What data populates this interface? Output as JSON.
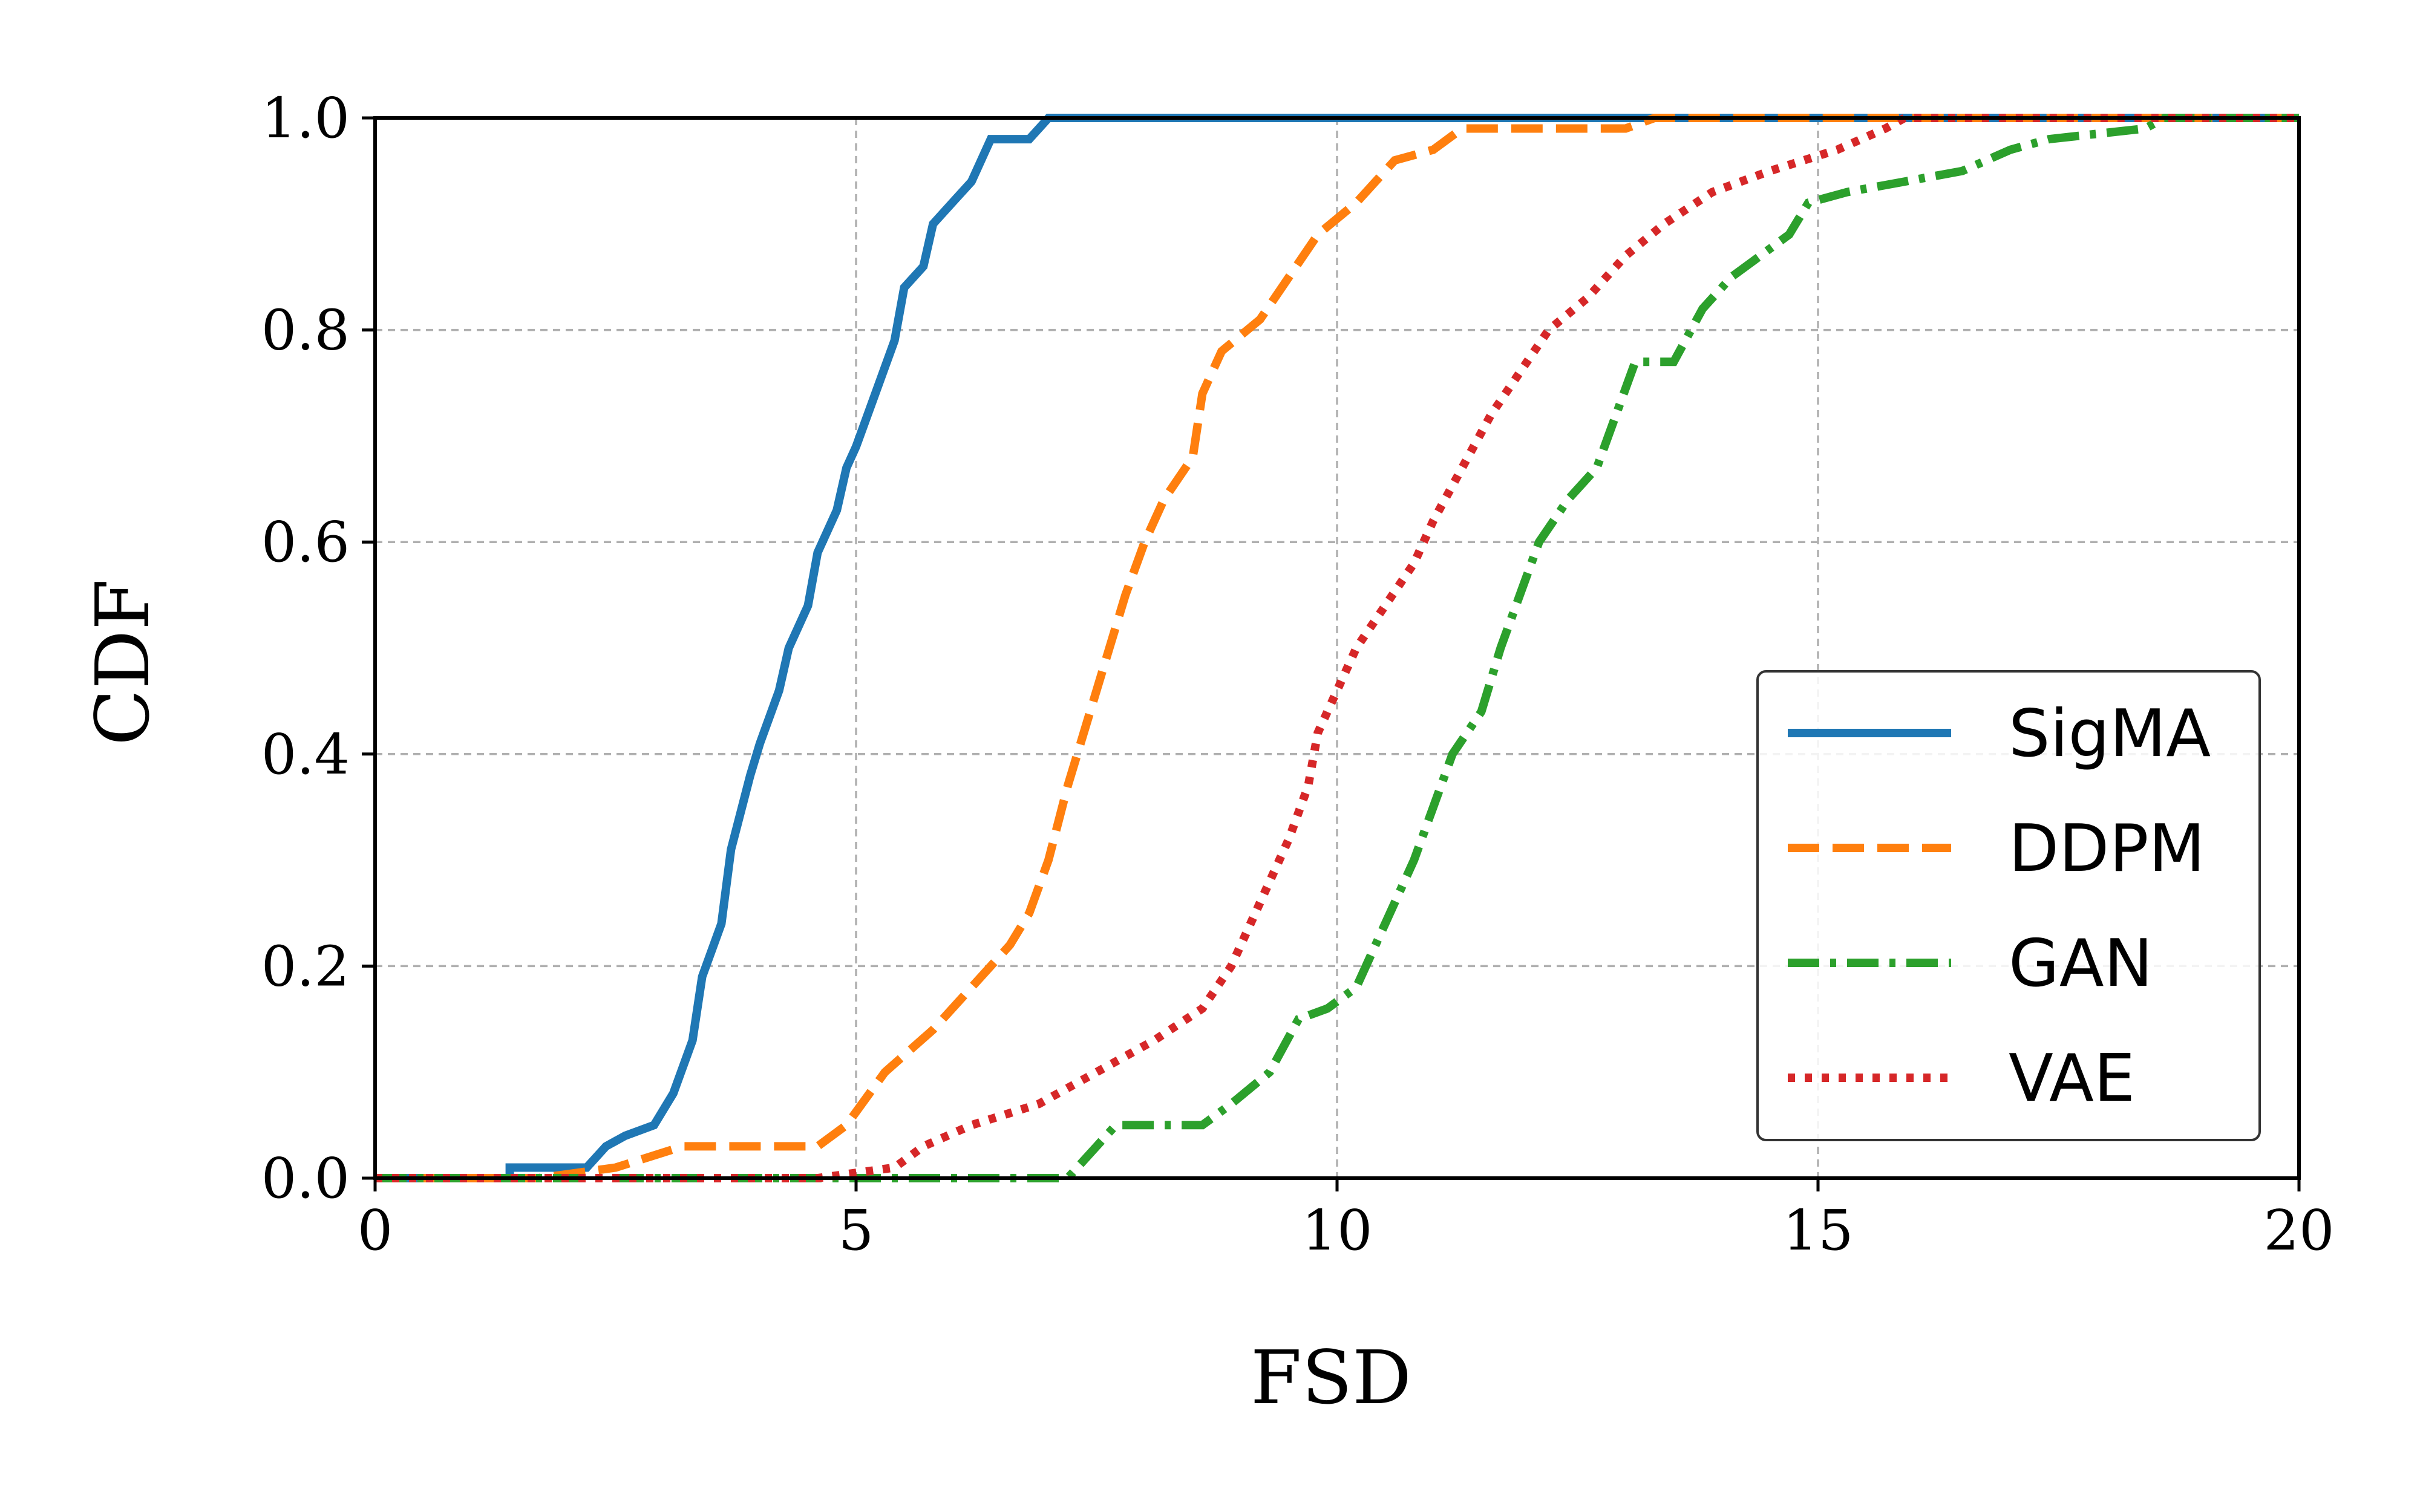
{
  "chart_data": {
    "type": "line",
    "xlabel": "FSD",
    "ylabel": "CDF",
    "xlim": [
      0,
      20
    ],
    "ylim": [
      0,
      1.0
    ],
    "x_ticks": [
      "0",
      "5",
      "10",
      "15",
      "20"
    ],
    "y_ticks": [
      "0.0",
      "0.2",
      "0.4",
      "0.6",
      "0.8",
      "1.0"
    ],
    "grid": true,
    "legend_position": "lower-right",
    "series": [
      {
        "name": "SigMA",
        "color": "#1f77b4",
        "style": "solid",
        "points": [
          [
            0,
            0
          ],
          [
            1.4,
            0
          ],
          [
            1.4,
            0.01
          ],
          [
            2.2,
            0.01
          ],
          [
            2.4,
            0.03
          ],
          [
            2.6,
            0.04
          ],
          [
            2.9,
            0.05
          ],
          [
            3.1,
            0.08
          ],
          [
            3.3,
            0.13
          ],
          [
            3.4,
            0.19
          ],
          [
            3.6,
            0.24
          ],
          [
            3.7,
            0.31
          ],
          [
            3.9,
            0.38
          ],
          [
            4.0,
            0.41
          ],
          [
            4.2,
            0.46
          ],
          [
            4.3,
            0.5
          ],
          [
            4.5,
            0.54
          ],
          [
            4.6,
            0.59
          ],
          [
            4.8,
            0.63
          ],
          [
            4.9,
            0.67
          ],
          [
            5.0,
            0.69
          ],
          [
            5.2,
            0.74
          ],
          [
            5.4,
            0.79
          ],
          [
            5.5,
            0.84
          ],
          [
            5.7,
            0.86
          ],
          [
            5.8,
            0.9
          ],
          [
            6.0,
            0.92
          ],
          [
            6.2,
            0.94
          ],
          [
            6.3,
            0.96
          ],
          [
            6.4,
            0.98
          ],
          [
            6.8,
            0.98
          ],
          [
            7.0,
            1.0
          ],
          [
            20,
            1.0
          ]
        ]
      },
      {
        "name": "DDPM",
        "color": "#ff7f0e",
        "style": "dashed",
        "points": [
          [
            0,
            0
          ],
          [
            1.7,
            0
          ],
          [
            2.5,
            0.01
          ],
          [
            3.2,
            0.03
          ],
          [
            4.6,
            0.03
          ],
          [
            4.9,
            0.05
          ],
          [
            5.3,
            0.1
          ],
          [
            5.8,
            0.14
          ],
          [
            6.2,
            0.18
          ],
          [
            6.6,
            0.22
          ],
          [
            6.8,
            0.25
          ],
          [
            7.0,
            0.3
          ],
          [
            7.2,
            0.37
          ],
          [
            7.4,
            0.43
          ],
          [
            7.6,
            0.49
          ],
          [
            7.8,
            0.55
          ],
          [
            8.0,
            0.6
          ],
          [
            8.2,
            0.64
          ],
          [
            8.5,
            0.68
          ],
          [
            8.6,
            0.74
          ],
          [
            8.8,
            0.78
          ],
          [
            9.2,
            0.81
          ],
          [
            9.5,
            0.85
          ],
          [
            9.8,
            0.89
          ],
          [
            10.2,
            0.92
          ],
          [
            10.4,
            0.94
          ],
          [
            10.6,
            0.96
          ],
          [
            11.0,
            0.97
          ],
          [
            11.3,
            0.99
          ],
          [
            13.0,
            0.99
          ],
          [
            13.3,
            1.0
          ],
          [
            20,
            1.0
          ]
        ]
      },
      {
        "name": "GAN",
        "color": "#2ca02c",
        "style": "dashdot",
        "points": [
          [
            0,
            0
          ],
          [
            7.2,
            0
          ],
          [
            7.5,
            0.03
          ],
          [
            7.7,
            0.05
          ],
          [
            8.6,
            0.05
          ],
          [
            8.9,
            0.07
          ],
          [
            9.3,
            0.1
          ],
          [
            9.6,
            0.15
          ],
          [
            9.9,
            0.16
          ],
          [
            10.2,
            0.18
          ],
          [
            10.5,
            0.24
          ],
          [
            10.8,
            0.3
          ],
          [
            11.0,
            0.35
          ],
          [
            11.2,
            0.4
          ],
          [
            11.5,
            0.44
          ],
          [
            11.7,
            0.5
          ],
          [
            11.9,
            0.55
          ],
          [
            12.1,
            0.6
          ],
          [
            12.4,
            0.64
          ],
          [
            12.7,
            0.67
          ],
          [
            12.9,
            0.72
          ],
          [
            13.1,
            0.77
          ],
          [
            13.5,
            0.77
          ],
          [
            13.8,
            0.82
          ],
          [
            14.1,
            0.85
          ],
          [
            14.4,
            0.87
          ],
          [
            14.7,
            0.89
          ],
          [
            14.9,
            0.92
          ],
          [
            15.3,
            0.93
          ],
          [
            15.9,
            0.94
          ],
          [
            16.5,
            0.95
          ],
          [
            17.0,
            0.97
          ],
          [
            17.4,
            0.98
          ],
          [
            18.4,
            0.99
          ],
          [
            18.6,
            1.0
          ],
          [
            20,
            1.0
          ]
        ]
      },
      {
        "name": "VAE",
        "color": "#d62728",
        "style": "dotted",
        "points": [
          [
            0,
            0
          ],
          [
            4.6,
            0
          ],
          [
            5.4,
            0.01
          ],
          [
            5.7,
            0.03
          ],
          [
            6.2,
            0.05
          ],
          [
            6.9,
            0.07
          ],
          [
            7.5,
            0.1
          ],
          [
            8.1,
            0.13
          ],
          [
            8.6,
            0.16
          ],
          [
            8.9,
            0.2
          ],
          [
            9.1,
            0.24
          ],
          [
            9.3,
            0.28
          ],
          [
            9.5,
            0.32
          ],
          [
            9.7,
            0.37
          ],
          [
            9.8,
            0.42
          ],
          [
            10.0,
            0.46
          ],
          [
            10.2,
            0.5
          ],
          [
            10.5,
            0.54
          ],
          [
            10.8,
            0.58
          ],
          [
            11.0,
            0.62
          ],
          [
            11.3,
            0.67
          ],
          [
            11.6,
            0.72
          ],
          [
            11.9,
            0.76
          ],
          [
            12.2,
            0.8
          ],
          [
            12.6,
            0.83
          ],
          [
            13.0,
            0.87
          ],
          [
            13.4,
            0.9
          ],
          [
            13.9,
            0.93
          ],
          [
            14.5,
            0.95
          ],
          [
            15.2,
            0.97
          ],
          [
            15.7,
            0.99
          ],
          [
            15.9,
            1.0
          ],
          [
            20,
            1.0
          ]
        ]
      }
    ]
  }
}
